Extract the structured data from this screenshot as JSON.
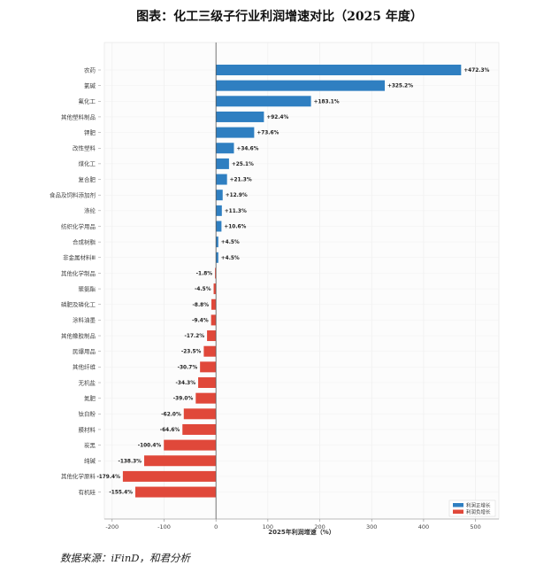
{
  "title": "图表：化工三级子行业利润增速对比（2025 年度）",
  "source": "数据来源：iFinD，和君分析",
  "colors": {
    "positive": "#2f7fc1",
    "negative": "#e0483a"
  },
  "chart_data": {
    "type": "bar",
    "orientation": "horizontal",
    "xlabel": "2025年利润增速（%）",
    "ylabel": "",
    "xlim": [
      -215,
      545
    ],
    "xticks": [
      -200,
      -100,
      0,
      100,
      200,
      300,
      400,
      500
    ],
    "grid": true,
    "legend_position": "bottom-right",
    "categories": [
      "农药",
      "氯碱",
      "氟化工",
      "其他塑料制品",
      "钾肥",
      "改性塑料",
      "煤化工",
      "复合肥",
      "食品及饲料添加剂",
      "涤纶",
      "纺织化学用品",
      "合成树脂",
      "非金属材料Ⅲ",
      "其他化学制品",
      "聚氨酯",
      "磷肥及磷化工",
      "涂料油墨",
      "其他橡胶制品",
      "民爆用品",
      "其他纤维",
      "无机盐",
      "氮肥",
      "钛白粉",
      "膜材料",
      "炭黑",
      "纯碱",
      "其他化学原料",
      "有机硅"
    ],
    "values": [
      472.3,
      325.2,
      183.1,
      92.4,
      73.6,
      34.6,
      25.1,
      21.3,
      12.9,
      11.3,
      10.6,
      4.5,
      4.5,
      -1.8,
      -4.5,
      -8.8,
      -9.4,
      -17.2,
      -23.5,
      -30.7,
      -34.3,
      -39.0,
      -62.0,
      -64.6,
      -100.4,
      -138.3,
      -179.4,
      -155.4
    ],
    "labels": [
      "+472.3%",
      "+325.2%",
      "+183.1%",
      "+92.4%",
      "+73.6%",
      "+34.6%",
      "+25.1%",
      "+21.3%",
      "+12.9%",
      "+11.3%",
      "+10.6%",
      "+4.5%",
      "+4.5%",
      "-1.8%",
      "-4.5%",
      "-8.8%",
      "-9.4%",
      "-17.2%",
      "-23.5%",
      "-30.7%",
      "-34.3%",
      "-39.0%",
      "-62.0%",
      "-64.6%",
      "-100.4%",
      "-138.3%",
      "-179.4%",
      "-155.4%"
    ],
    "series": [
      {
        "name": "利润正增长",
        "color": "#2f7fc1"
      },
      {
        "name": "利润负增长",
        "color": "#e0483a"
      }
    ]
  }
}
